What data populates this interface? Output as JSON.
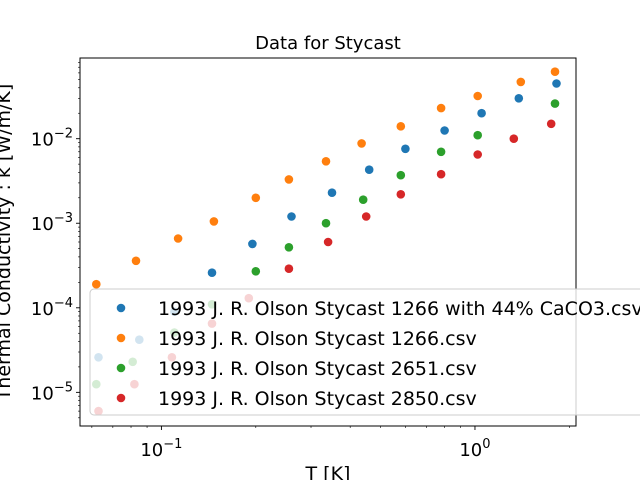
{
  "chart_data": {
    "type": "scatter",
    "title": "Data for Stycast",
    "xlabel": "T [K]",
    "ylabel": "Thermal Conductivity : k [W/m/K]",
    "x_scale": "log",
    "y_scale": "log",
    "xlim": [
      0.055,
      2.1
    ],
    "ylim": [
      4e-06,
      0.09
    ],
    "x_ticks": [
      {
        "value": 0.1,
        "base": "10",
        "exp": "−1"
      },
      {
        "value": 1,
        "base": "10",
        "exp": "0"
      }
    ],
    "y_ticks": [
      {
        "value": 1e-05,
        "base": "10",
        "exp": "−5"
      },
      {
        "value": 0.0001,
        "base": "10",
        "exp": "−4"
      },
      {
        "value": 0.001,
        "base": "10",
        "exp": "−3"
      },
      {
        "value": 0.01,
        "base": "10",
        "exp": "−2"
      }
    ],
    "grid": false,
    "legend_position": "lower-right",
    "series": [
      {
        "name": "1993 J. R. Olson Stycast 1266 with 44% CaCO3.csv",
        "color": "#1f77b4",
        "points": [
          [
            0.063,
            2.6e-05
          ],
          [
            0.085,
            4.2e-05
          ],
          [
            0.11,
            9e-05
          ],
          [
            0.145,
            0.00026
          ],
          [
            0.195,
            0.00057
          ],
          [
            0.26,
            0.0012
          ],
          [
            0.35,
            0.0023
          ],
          [
            0.46,
            0.0043
          ],
          [
            0.6,
            0.0076
          ],
          [
            0.8,
            0.0125
          ],
          [
            1.05,
            0.02
          ],
          [
            1.38,
            0.03
          ],
          [
            1.82,
            0.045
          ]
        ]
      },
      {
        "name": "1993 J. R. Olson Stycast 1266.csv",
        "color": "#ff7f0e",
        "points": [
          [
            0.062,
            0.00019
          ],
          [
            0.083,
            0.00036
          ],
          [
            0.113,
            0.00066
          ],
          [
            0.147,
            0.00105
          ],
          [
            0.2,
            0.002
          ],
          [
            0.255,
            0.0033
          ],
          [
            0.335,
            0.0054
          ],
          [
            0.435,
            0.0088
          ],
          [
            0.58,
            0.014
          ],
          [
            0.78,
            0.023
          ],
          [
            1.02,
            0.032
          ],
          [
            1.4,
            0.047
          ],
          [
            1.8,
            0.062
          ]
        ]
      },
      {
        "name": "1993 J. R. Olson Stycast 2651.csv",
        "color": "#2ca02c",
        "points": [
          [
            0.062,
            1.25e-05
          ],
          [
            0.081,
            2.3e-05
          ],
          [
            0.11,
            5.1e-05
          ],
          [
            0.145,
            0.00011
          ],
          [
            0.2,
            0.00027
          ],
          [
            0.255,
            0.00052
          ],
          [
            0.335,
            0.001
          ],
          [
            0.44,
            0.0019
          ],
          [
            0.58,
            0.0037
          ],
          [
            0.78,
            0.007
          ],
          [
            1.02,
            0.011
          ],
          [
            1.8,
            0.026
          ]
        ]
      },
      {
        "name": "1993 J. R. Olson Stycast 2850.csv",
        "color": "#d62728",
        "points": [
          [
            0.063,
            6e-06
          ],
          [
            0.082,
            1.25e-05
          ],
          [
            0.108,
            2.6e-05
          ],
          [
            0.145,
            6.5e-05
          ],
          [
            0.19,
            0.00013
          ],
          [
            0.255,
            0.00029
          ],
          [
            0.34,
            0.0006
          ],
          [
            0.45,
            0.0012
          ],
          [
            0.58,
            0.0022
          ],
          [
            0.78,
            0.0038
          ],
          [
            1.02,
            0.0065
          ],
          [
            1.33,
            0.01
          ],
          [
            1.75,
            0.015
          ]
        ]
      }
    ]
  }
}
